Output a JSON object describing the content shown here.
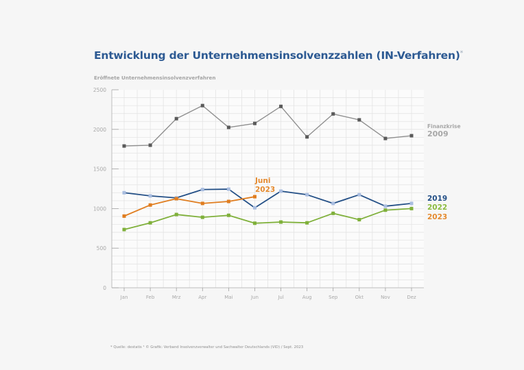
{
  "title": "Entwicklung der Unternehmensinsolvenzzahlen (IN-Verfahren)",
  "title_marker": "*",
  "subtitle": "Eröffnete Unternehmensinsolvenzverfahren",
  "footnote": "* Quelle: destatis ¹ © Grafik: Verband Insolvenzverwalter und Sachwalter Deutschlands (VID) / Sept. 2023",
  "chart_data": {
    "type": "line",
    "title": "Entwicklung der Unternehmensinsolvenzzahlen (IN-Verfahren)*",
    "ylabel": "Eröffnete Unternehmensinsolvenzverfahren",
    "xlabel": "",
    "categories": [
      "Jan",
      "Feb",
      "Mrz",
      "Apr",
      "Mai",
      "Jun",
      "Jul",
      "Aug",
      "Sep",
      "Okt",
      "Nov",
      "Dez"
    ],
    "ylim": [
      0,
      2500
    ],
    "yticks": [
      0,
      500,
      1000,
      1500,
      2000,
      2500
    ],
    "grid": true,
    "series": [
      {
        "name": "2009",
        "label_lines": [
          "Finanzkrise",
          "2009"
        ],
        "color": "#8f8f8f",
        "marker_color": "#5a5a5a",
        "values": [
          1790,
          1800,
          2135,
          2300,
          2025,
          2075,
          2290,
          1905,
          2195,
          2120,
          1885,
          1920
        ]
      },
      {
        "name": "2019",
        "label_lines": [
          "2019"
        ],
        "color": "#234f86",
        "marker_color": "#a9bde0",
        "values": [
          1200,
          1160,
          1135,
          1240,
          1245,
          1010,
          1220,
          1175,
          1065,
          1175,
          1030,
          1065
        ]
      },
      {
        "name": "2022",
        "label_lines": [
          "2022"
        ],
        "color": "#7fb03a",
        "marker_color": "#7fb03a",
        "values": [
          735,
          820,
          925,
          890,
          915,
          815,
          830,
          820,
          940,
          860,
          980,
          1000
        ]
      },
      {
        "name": "2023",
        "label_lines": [
          "2023"
        ],
        "color": "#e07d1f",
        "marker_color": "#e07d1f",
        "values": [
          905,
          1045,
          1125,
          1065,
          1090,
          1150,
          null,
          null,
          null,
          null,
          null,
          null
        ]
      }
    ],
    "annotations": [
      {
        "text_lines": [
          "Juni",
          "2023"
        ],
        "series": "2023",
        "category": "Jun",
        "color": "#e07d1f"
      }
    ],
    "legend": {
      "placement": "right",
      "entries": [
        "Finanzkrise 2009",
        "2019",
        "2022",
        "2023"
      ]
    }
  }
}
